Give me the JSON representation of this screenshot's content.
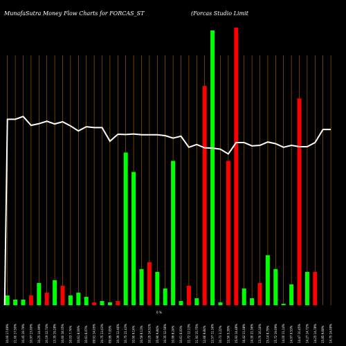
{
  "chart_data": {
    "type": "bar",
    "title_left": "MunafaSutra  Money Flow  Charts for FORCAS_ST",
    "title_right": "(Forcas Studio  Limit",
    "zero_label": "0 %",
    "colors": {
      "up": "#00ff00",
      "down": "#ff0000",
      "line": "#ffffff",
      "grid": "#b06a00",
      "background": "#000000"
    },
    "grid": true,
    "ylim": [
      0,
      100
    ],
    "categories": [
      "10.00 17.69%",
      "11.00 17.50%",
      "10.45 19.79%",
      "10.97 13.00%",
      "10.25 14.99%",
      "10.19 12.74%",
      "13.35 19.28%",
      "10.60 18.35%",
      "10.03 7.74%",
      "10.61 8.09%",
      "10.61 6.07%",
      "09.91 14.05%",
      "10.75 13.03%",
      "09.99 7.05%",
      "10.39 12.46%",
      "10.75 11.43%",
      "10.90 9.14%",
      "10.59 8.13%",
      "10.25 14.51%",
      "10.90 9.84%",
      "10.35 12.56%",
      "10.99 8.24%",
      "10.61 6.03%",
      "11.72 12.13%",
      "11.93 15.75%",
      "12.66 9.84%",
      "12.57 11.16%",
      "10.73 3.22%",
      "12.50 5.39%",
      "15.93 14.48%",
      "16.42 11.08%",
      "14.30 21.56%",
      "13.70 16.16%",
      "15.14 8.79%",
      "15.72 19.09%",
      "14.00 11.14%",
      "14.97 9.53%",
      "14.47 10.45%",
      "14.27 14.72%",
      "14.25 14.78%",
      "15.85 9.68%",
      "14.75 14.09%"
    ],
    "series": [
      {
        "colors": [
          "up",
          "up",
          "up",
          "down",
          "up",
          "down",
          "up",
          "down",
          "up",
          "up",
          "up",
          "down",
          "up",
          "up",
          "down",
          "up",
          "up",
          "up",
          "down",
          "up",
          "up",
          "up",
          "up",
          "down",
          "up",
          "down",
          "up",
          "up",
          "down",
          "down",
          "up",
          "up",
          "down",
          "up",
          "up",
          "up",
          "up",
          "down",
          "up",
          "down",
          "up",
          "up"
        ],
        "values": [
          3.5,
          2,
          2,
          3.5,
          8,
          4.5,
          9,
          7,
          3.5,
          4.5,
          3,
          1,
          1.5,
          1,
          1.5,
          55,
          48,
          13,
          15.5,
          12,
          6,
          52,
          1.5,
          7,
          2.5,
          79,
          99,
          1,
          52,
          100,
          6,
          2.5,
          8,
          18,
          13,
          0.5,
          7.5,
          74.5,
          12,
          12,
          0,
          0
        ]
      },
      {
        "name": "",
        "type": "line",
        "values": [
          67,
          67,
          68,
          64.8,
          65.4,
          66.3,
          65.3,
          66.1,
          64.6,
          62.8,
          64.3,
          64,
          64,
          59.1,
          61.6,
          61.5,
          61.7,
          61.4,
          61.4,
          61.4,
          61.1,
          60.2,
          60.9,
          56.9,
          57.9,
          56.7,
          56.6,
          56.2,
          54.5,
          58.6,
          58.6,
          57.4,
          57.6,
          58.8,
          58.2,
          56.9,
          57.6,
          57.1,
          57.1,
          58.6,
          63.3,
          63.3
        ]
      }
    ]
  }
}
